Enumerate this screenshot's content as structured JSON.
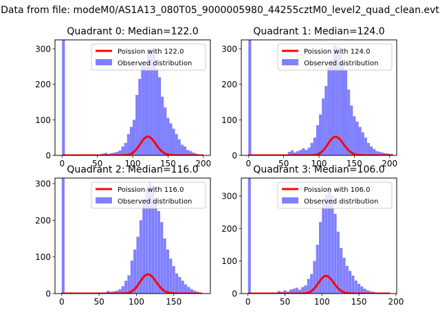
{
  "figure": {
    "suptitle": "Data from file: modeM0/AS1A13_080T05_9000005980_44255cztM0_level2_quad_clean.evt"
  },
  "colors": {
    "hist": "#8080ff",
    "fit": "#ff0000",
    "axes": "#000000",
    "background": "#ffffff"
  },
  "chart_data": [
    {
      "type": "bar",
      "title": "Quadrant 0: Median=122.0",
      "xlim": [
        -10,
        210
      ],
      "ylim": [
        0,
        325
      ],
      "xticks": [
        0,
        50,
        100,
        150,
        200
      ],
      "yticks": [
        0,
        100,
        200,
        300
      ],
      "bin_width": 4.0,
      "legend": {
        "placement": "top-right",
        "entries": [
          "Poission with 122.0",
          "Observed distribution"
        ]
      },
      "series": [
        {
          "name": "Observed distribution",
          "kind": "hist",
          "bins": [
            [
              0,
              325
            ],
            [
              56,
              5
            ],
            [
              60,
              7
            ],
            [
              64,
              4
            ],
            [
              68,
              6
            ],
            [
              72,
              8
            ],
            [
              76,
              10
            ],
            [
              80,
              14
            ],
            [
              84,
              25
            ],
            [
              88,
              35
            ],
            [
              92,
              60
            ],
            [
              96,
              80
            ],
            [
              100,
              100
            ],
            [
              104,
              170
            ],
            [
              108,
              215
            ],
            [
              112,
              260
            ],
            [
              116,
              250
            ],
            [
              120,
              300
            ],
            [
              124,
              295
            ],
            [
              128,
              285
            ],
            [
              132,
              245
            ],
            [
              136,
              220
            ],
            [
              140,
              165
            ],
            [
              144,
              135
            ],
            [
              148,
              105
            ],
            [
              152,
              90
            ],
            [
              156,
              75
            ],
            [
              160,
              60
            ],
            [
              164,
              45
            ],
            [
              168,
              30
            ],
            [
              172,
              25
            ],
            [
              176,
              15
            ],
            [
              180,
              12
            ],
            [
              184,
              8
            ],
            [
              188,
              5
            ]
          ]
        },
        {
          "name": "Poission with 122.0",
          "kind": "line",
          "mean": 122.0,
          "scale": 1460,
          "x_range": [
            0,
            200
          ]
        }
      ]
    },
    {
      "type": "bar",
      "title": "Quadrant 1: Median=124.0",
      "xlim": [
        -10,
        210
      ],
      "ylim": [
        0,
        325
      ],
      "xticks": [
        0,
        50,
        100,
        150,
        200
      ],
      "yticks": [
        0,
        100,
        200,
        300
      ],
      "bin_width": 4.0,
      "legend": {
        "placement": "top-right",
        "entries": [
          "Poission with 124.0",
          "Observed distribution"
        ]
      },
      "series": [
        {
          "name": "Observed distribution",
          "kind": "hist",
          "bins": [
            [
              0,
              325
            ],
            [
              56,
              10
            ],
            [
              60,
              14
            ],
            [
              64,
              8
            ],
            [
              68,
              12
            ],
            [
              72,
              15
            ],
            [
              76,
              20
            ],
            [
              80,
              15
            ],
            [
              84,
              22
            ],
            [
              88,
              35
            ],
            [
              92,
              50
            ],
            [
              96,
              85
            ],
            [
              100,
              115
            ],
            [
              104,
              160
            ],
            [
              108,
              195
            ],
            [
              112,
              250
            ],
            [
              116,
              270
            ],
            [
              120,
              310
            ],
            [
              124,
              305
            ],
            [
              128,
              285
            ],
            [
              132,
              260
            ],
            [
              136,
              240
            ],
            [
              140,
              185
            ],
            [
              144,
              140
            ],
            [
              148,
              110
            ],
            [
              152,
              95
            ],
            [
              156,
              80
            ],
            [
              160,
              65
            ],
            [
              164,
              50
            ],
            [
              168,
              35
            ],
            [
              172,
              25
            ],
            [
              176,
              18
            ],
            [
              180,
              12
            ],
            [
              184,
              10
            ],
            [
              188,
              8
            ],
            [
              192,
              6
            ],
            [
              196,
              5
            ],
            [
              200,
              4
            ]
          ]
        },
        {
          "name": "Poission with 124.0",
          "kind": "line",
          "mean": 124.0,
          "scale": 1460,
          "x_range": [
            0,
            205
          ]
        }
      ]
    },
    {
      "type": "bar",
      "title": "Quadrant 2: Median=116.0",
      "xlim": [
        -9,
        199
      ],
      "ylim": [
        0,
        315
      ],
      "xticks": [
        0,
        50,
        100,
        150
      ],
      "yticks": [
        0,
        100,
        200,
        300
      ],
      "bin_width": 3.8,
      "legend": {
        "placement": "top-right",
        "entries": [
          "Poission with 116.0",
          "Observed distribution"
        ]
      },
      "series": [
        {
          "name": "Observed distribution",
          "kind": "hist",
          "bins": [
            [
              0,
              315
            ],
            [
              60,
              7
            ],
            [
              64,
              5
            ],
            [
              68,
              6
            ],
            [
              72,
              8
            ],
            [
              76,
              12
            ],
            [
              80,
              20
            ],
            [
              84,
              35
            ],
            [
              88,
              50
            ],
            [
              92,
              90
            ],
            [
              96,
              120
            ],
            [
              100,
              155
            ],
            [
              104,
              200
            ],
            [
              108,
              255
            ],
            [
              112,
              285
            ],
            [
              116,
              305
            ],
            [
              120,
              295
            ],
            [
              124,
              255
            ],
            [
              128,
              225
            ],
            [
              132,
              195
            ],
            [
              136,
              150
            ],
            [
              140,
              120
            ],
            [
              144,
              95
            ],
            [
              148,
              75
            ],
            [
              152,
              55
            ],
            [
              156,
              45
            ],
            [
              160,
              35
            ],
            [
              164,
              25
            ],
            [
              168,
              18
            ],
            [
              172,
              12
            ],
            [
              176,
              8
            ],
            [
              180,
              5
            ]
          ]
        },
        {
          "name": "Poission with 116.0",
          "kind": "line",
          "mean": 116.0,
          "scale": 1420,
          "x_range": [
            0,
            188
          ]
        }
      ]
    },
    {
      "type": "bar",
      "title": "Quadrant 3: Median=106.0",
      "xlim": [
        -9,
        201
      ],
      "ylim": [
        0,
        355
      ],
      "xticks": [
        0,
        50,
        100,
        150,
        200
      ],
      "yticks": [
        0,
        100,
        200,
        300
      ],
      "bin_width": 3.8,
      "legend": {
        "placement": "top-right",
        "entries": [
          "Poission with 106.0",
          "Observed distribution"
        ]
      },
      "series": [
        {
          "name": "Observed distribution",
          "kind": "hist",
          "bins": [
            [
              0,
              355
            ],
            [
              40,
              8
            ],
            [
              44,
              5
            ],
            [
              48,
              10
            ],
            [
              52,
              6
            ],
            [
              56,
              12
            ],
            [
              60,
              15
            ],
            [
              64,
              18
            ],
            [
              68,
              12
            ],
            [
              72,
              20
            ],
            [
              76,
              25
            ],
            [
              80,
              45
            ],
            [
              84,
              60
            ],
            [
              88,
              100
            ],
            [
              92,
              150
            ],
            [
              96,
              220
            ],
            [
              100,
              285
            ],
            [
              104,
              305
            ],
            [
              108,
              325
            ],
            [
              112,
              300
            ],
            [
              116,
              245
            ],
            [
              120,
              190
            ],
            [
              124,
              140
            ],
            [
              128,
              110
            ],
            [
              132,
              85
            ],
            [
              136,
              70
            ],
            [
              140,
              55
            ],
            [
              144,
              40
            ],
            [
              148,
              30
            ],
            [
              152,
              22
            ],
            [
              156,
              15
            ],
            [
              160,
              10
            ],
            [
              164,
              7
            ],
            [
              168,
              5
            ],
            [
              172,
              3
            ]
          ]
        },
        {
          "name": "Poission with 106.0",
          "kind": "line",
          "mean": 106.0,
          "scale": 1400,
          "x_range": [
            0,
            192
          ]
        }
      ]
    }
  ]
}
